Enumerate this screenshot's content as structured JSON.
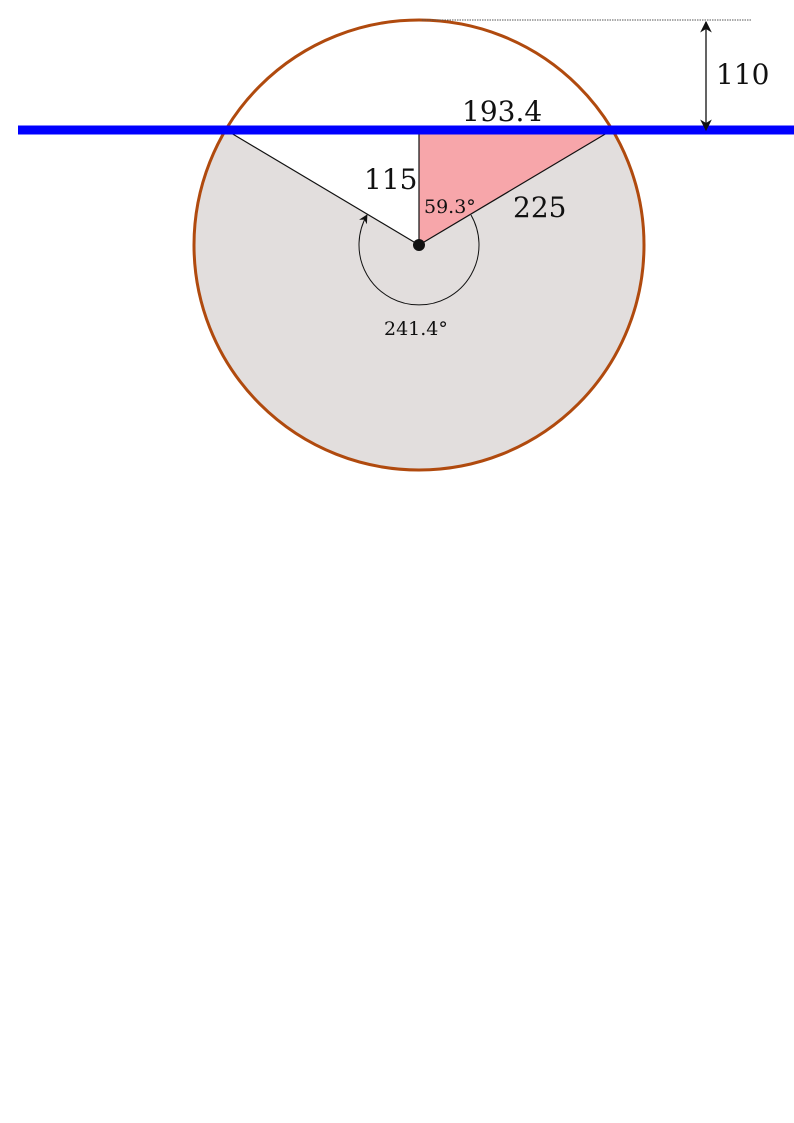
{
  "labels": {
    "depth": "110",
    "chord": "193.4",
    "apothem": "115",
    "radius": "225",
    "half_angle": "59.3°",
    "major_angle": "241.4°"
  },
  "colors": {
    "page_background": "#ffffff",
    "circle_stroke": "#b04a0e",
    "major_sector_fill": "#e2dedd",
    "triangle_fill": "#f7a6aa",
    "water_line": "#0000ff",
    "construction_line": "#111111",
    "center_dot": "#111111"
  }
}
